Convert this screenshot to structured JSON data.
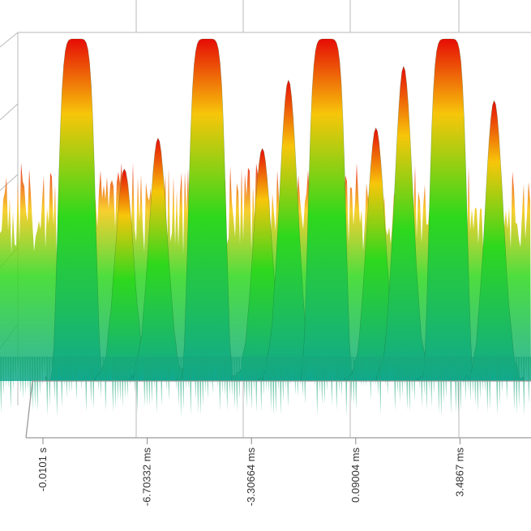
{
  "chart_data": {
    "type": "surface",
    "title": "",
    "xlabel": "",
    "ylabel": "",
    "zlabel": "",
    "x_unit": "ms",
    "x_ticks": [
      "-0.0101 s",
      "-6.70332 ms",
      "-3.30664 ms",
      "0.09004 ms",
      "3.4867 ms"
    ],
    "x_tick_values_ms": [
      -10.1,
      -6.70332,
      -3.30664,
      0.09004,
      3.4867
    ],
    "x_range_ms": [
      -11.5,
      5.8
    ],
    "grid": true,
    "colormap": [
      "#e60c06",
      "#f7c60a",
      "#2ed81c",
      "#10a890"
    ],
    "ridges": [
      {
        "center_ms": -9.0,
        "z_peak": 1.0
      },
      {
        "center_ms": -7.45,
        "z_peak": 0.62
      },
      {
        "center_ms": -6.35,
        "z_peak": 0.71
      },
      {
        "center_ms": -4.75,
        "z_peak": 1.0
      },
      {
        "center_ms": -2.95,
        "z_peak": 0.68
      },
      {
        "center_ms": -2.1,
        "z_peak": 0.88
      },
      {
        "center_ms": -0.85,
        "z_peak": 1.0
      },
      {
        "center_ms": 0.75,
        "z_peak": 0.74
      },
      {
        "center_ms": 1.65,
        "z_peak": 0.92
      },
      {
        "center_ms": 3.1,
        "z_peak": 1.0
      },
      {
        "center_ms": 4.6,
        "z_peak": 0.82
      }
    ]
  }
}
